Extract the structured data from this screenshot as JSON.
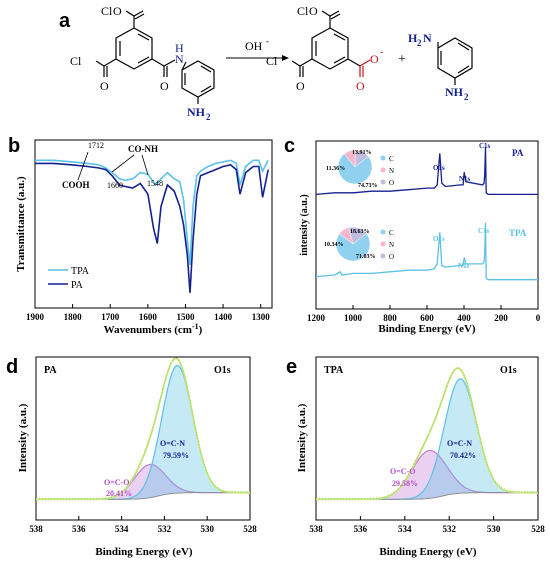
{
  "colors": {
    "dark_blue": "#15218f",
    "light_blue": "#5bc1e6",
    "red": "#c0151b",
    "green_env": "#c3e67c",
    "purple": "#c77bd6",
    "pie_c": "#8fd1ef",
    "pie_n": "#f5b7c9",
    "pie_o": "#c1bde0"
  },
  "scheme": {
    "label": "a",
    "arrow_label": "OH",
    "arrow_sup": "-",
    "plus": "+",
    "left": {
      "cocl_top": "Cl",
      "cocl_top_c": "C",
      "cocl_top_o": "O",
      "cocl_left": "Cl",
      "cocl_left_c": "C",
      "cocl_left_o": "O",
      "amide_o": "O",
      "amide_n": "N",
      "amide_h": "H",
      "nh2": "NH",
      "nh2_sub": "2"
    },
    "mid": {
      "cocl_top": "Cl",
      "cocl_top_c": "C",
      "cocl_top_o": "O",
      "cocl_left": "Cl",
      "cocl_left_c": "C",
      "cocl_left_o": "O",
      "carbox_o": "O",
      "carbox_o2": "O",
      "carbox_charge": "-"
    },
    "right": {
      "nh2_top": "H",
      "nh2_top_sub": "2",
      "nh2_top_n": "N",
      "nh2_bot": "NH",
      "nh2_bot_sub": "2"
    }
  },
  "chart_data": [
    {
      "panel": "b",
      "type": "line",
      "xlabel": "Wavenumbers (cm",
      "xlabel_sup": "-1",
      "xlabel_end": ")",
      "ylabel": "Transmittance (a.u.)",
      "xlim": [
        1900,
        1270
      ],
      "x_reversed": true,
      "xticks": [
        1900,
        1800,
        1700,
        1600,
        1500,
        1400,
        1300
      ],
      "legend": [
        "TPA",
        "PA"
      ],
      "series": [
        {
          "name": "TPA",
          "color": "#5bc1e6",
          "x": [
            1900,
            1850,
            1800,
            1760,
            1730,
            1712,
            1695,
            1675,
            1660,
            1640,
            1620,
            1600,
            1580,
            1565,
            1548,
            1530,
            1515,
            1505,
            1495,
            1488,
            1480,
            1470,
            1460,
            1440,
            1420,
            1400,
            1380,
            1365,
            1355,
            1340,
            1320,
            1305,
            1295,
            1280
          ],
          "y": [
            92,
            92,
            91,
            90,
            89,
            87,
            84,
            80,
            79,
            80,
            84,
            83,
            76,
            80,
            84,
            80,
            78,
            66,
            40,
            24,
            62,
            82,
            85,
            88,
            90,
            91,
            92,
            90,
            76,
            88,
            92,
            92,
            85,
            92
          ]
        },
        {
          "name": "PA",
          "color": "#15218f",
          "x": [
            1900,
            1850,
            1800,
            1760,
            1730,
            1712,
            1695,
            1675,
            1660,
            1640,
            1620,
            1600,
            1585,
            1575,
            1565,
            1548,
            1530,
            1515,
            1505,
            1495,
            1488,
            1480,
            1470,
            1460,
            1440,
            1420,
            1400,
            1380,
            1365,
            1355,
            1340,
            1320,
            1305,
            1295,
            1280
          ],
          "y": [
            90,
            90,
            89,
            88,
            87,
            86,
            82,
            76,
            75,
            74,
            77,
            70,
            48,
            38,
            62,
            76,
            72,
            62,
            50,
            30,
            6,
            40,
            70,
            82,
            84,
            86,
            88,
            89,
            86,
            70,
            84,
            88,
            88,
            68,
            86
          ]
        }
      ],
      "annotations": [
        "1712",
        "COOH",
        "CO-NH",
        "1660",
        "1548"
      ]
    },
    {
      "panel": "c",
      "type": "line",
      "xlabel": "Binding Energy (eV)",
      "ylabel": "intensity (a.u.)",
      "xlim": [
        1200,
        0
      ],
      "x_reversed": true,
      "xticks": [
        1200,
        1000,
        800,
        600,
        400,
        200,
        0
      ],
      "series": [
        {
          "name": "PA",
          "color": "#15218f",
          "x": [
            1200,
            1100,
            1000,
            900,
            800,
            700,
            600,
            560,
            545,
            531,
            520,
            500,
            420,
            405,
            399,
            390,
            300,
            292,
            288,
            284,
            280,
            270,
            200,
            0
          ],
          "y": [
            0.7,
            0.71,
            0.71,
            0.72,
            0.72,
            0.73,
            0.74,
            0.74,
            0.76,
            0.96,
            0.77,
            0.75,
            0.76,
            0.76,
            0.84,
            0.78,
            0.76,
            0.77,
            0.82,
            1.0,
            0.71,
            0.7,
            0.7,
            0.7
          ]
        },
        {
          "name": "TPA",
          "color": "#5bc1e6",
          "x": [
            1200,
            1100,
            1070,
            1060,
            1000,
            900,
            800,
            700,
            600,
            560,
            545,
            531,
            520,
            500,
            420,
            405,
            399,
            390,
            300,
            292,
            288,
            284,
            280,
            270,
            200,
            0
          ],
          "y": [
            0.18,
            0.19,
            0.21,
            0.19,
            0.2,
            0.2,
            0.21,
            0.22,
            0.22,
            0.23,
            0.26,
            0.46,
            0.25,
            0.24,
            0.25,
            0.25,
            0.3,
            0.26,
            0.26,
            0.27,
            0.32,
            0.52,
            0.17,
            0.16,
            0.16,
            0.16
          ]
        }
      ],
      "peak_labels": [
        "O1s",
        "N1s",
        "C1s"
      ],
      "series_labels": [
        "PA",
        "TPA"
      ],
      "pies": [
        {
          "series": "PA",
          "slices": [
            {
              "label": "C",
              "value": 74.73
            },
            {
              "label": "N",
              "value": 11.36
            },
            {
              "label": "O",
              "value": 13.91
            }
          ],
          "value_labels": [
            "74.73%",
            "11.36%",
            "13.91%"
          ]
        },
        {
          "series": "TPA",
          "slices": [
            {
              "label": "C",
              "value": 71.03
            },
            {
              "label": "N",
              "value": 10.34
            },
            {
              "label": "O",
              "value": 18.63
            }
          ],
          "value_labels": [
            "71.03%",
            "10.34%",
            "18.63%"
          ]
        }
      ]
    },
    {
      "panel": "d",
      "type": "area",
      "title_left": "PA",
      "title_right": "O1s",
      "xlabel": "Binding Energy (eV)",
      "ylabel": "Intensity (a.u.)",
      "xlim": [
        538,
        528
      ],
      "x_reversed": true,
      "xticks": [
        538,
        536,
        534,
        532,
        530,
        528
      ],
      "peaks": [
        {
          "name": "O=C-N",
          "percent": "79.59%",
          "center": 531.4,
          "height": 0.96,
          "sigma": 0.72
        },
        {
          "name": "O=C-O",
          "percent": "20.41%",
          "center": 532.7,
          "height": 0.25,
          "sigma": 0.72
        }
      ]
    },
    {
      "panel": "e",
      "type": "area",
      "title_left": "TPA",
      "title_right": "O1s",
      "xlabel": "Binding Energy (eV)",
      "ylabel": "Intensity (a.u.)",
      "xlim": [
        538,
        528
      ],
      "x_reversed": true,
      "xticks": [
        538,
        536,
        534,
        532,
        530,
        528
      ],
      "peaks": [
        {
          "name": "O=C-N",
          "percent": "70.42%",
          "center": 531.5,
          "height": 0.86,
          "sigma": 0.72
        },
        {
          "name": "O=C-O",
          "percent": "29.58%",
          "center": 532.9,
          "height": 0.36,
          "sigma": 0.78
        }
      ]
    }
  ]
}
